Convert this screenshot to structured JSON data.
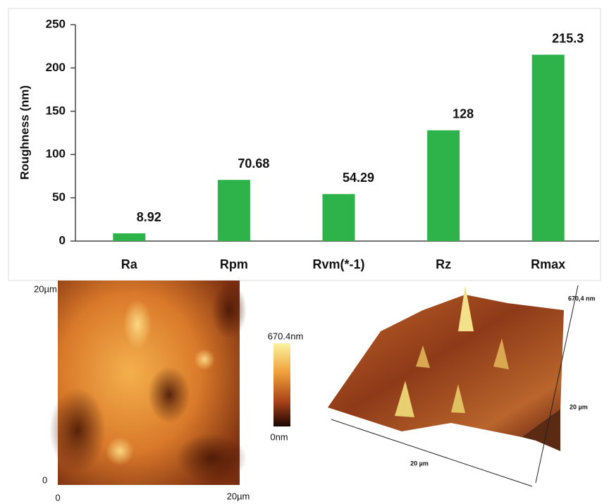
{
  "chart_data": {
    "type": "bar",
    "y_label": "Roughness (nm)",
    "categories": [
      "Ra",
      "Rpm",
      "Rvm(*-1)",
      "Rz",
      "Rmax"
    ],
    "values": [
      8.92,
      70.68,
      54.29,
      128,
      215.3
    ],
    "color": "#2db34a",
    "ylim": [
      0,
      250
    ],
    "yticks": [
      0,
      50,
      100,
      150,
      200,
      250
    ]
  },
  "afm_2d": {
    "y_top": "20µm",
    "y_bottom": "0",
    "x_left": "0",
    "x_right": "20µm",
    "scale_max": "670.4nm",
    "scale_min": "0nm"
  },
  "afm_3d": {
    "z_label": "670,4 nm",
    "y_label": "20 µm",
    "x_label": "20 µm"
  }
}
